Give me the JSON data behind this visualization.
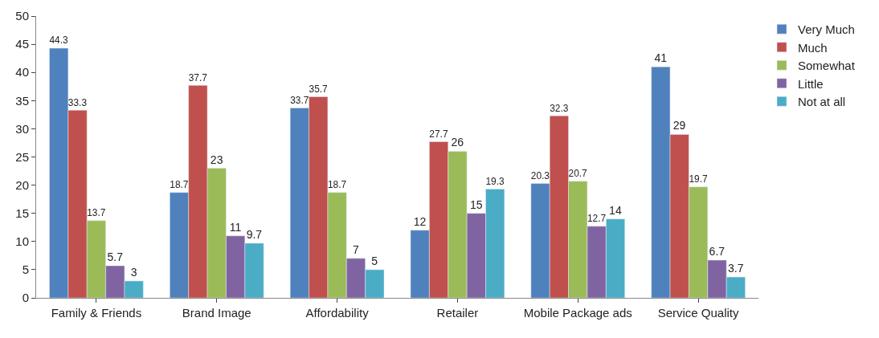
{
  "chart_data": {
    "type": "bar",
    "categories": [
      "Family & Friends",
      "Brand Image",
      "Affordability",
      "Retailer",
      "Mobile Package ads",
      "Service Quality"
    ],
    "series": [
      {
        "name": "Very Much",
        "color": "#4f81bd",
        "values": [
          44.3,
          18.7,
          33.7,
          12,
          20.3,
          41
        ]
      },
      {
        "name": "Much",
        "color": "#c0504d",
        "values": [
          33.3,
          37.7,
          35.7,
          27.7,
          32.3,
          29
        ]
      },
      {
        "name": "Somewhat",
        "color": "#9bbb59",
        "values": [
          13.7,
          23,
          18.7,
          26,
          20.7,
          19.7
        ]
      },
      {
        "name": "Little",
        "color": "#8064a2",
        "values": [
          5.7,
          11,
          7,
          15,
          12.7,
          6.7
        ]
      },
      {
        "name": "Not at all",
        "color": "#4bacc6",
        "values": [
          3,
          9.7,
          5,
          19.3,
          14,
          3.7
        ]
      }
    ],
    "ylim": [
      0,
      50
    ],
    "yticks": [
      0,
      5,
      10,
      15,
      20,
      25,
      30,
      35,
      40,
      45,
      50
    ],
    "data_labels": true,
    "legend": "top right",
    "grid": false
  }
}
